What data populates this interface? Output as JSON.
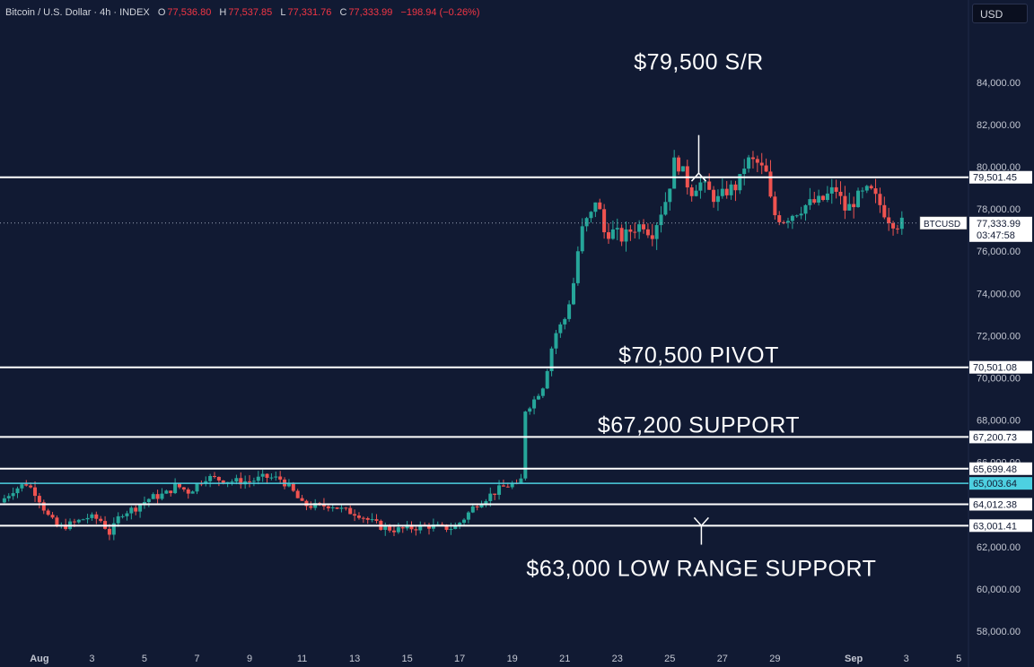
{
  "header": {
    "symbol": "Bitcoin / U.S. Dollar · 4h · INDEX",
    "open_label": "O",
    "open": "77,536.80",
    "high_label": "H",
    "high": "77,537.85",
    "low_label": "L",
    "low": "77,331.76",
    "close_label": "C",
    "close": "77,333.99",
    "change": "−198.94 (−0.26%)"
  },
  "currency_button": "USD",
  "colors": {
    "background": "#111a33",
    "up": "#26a69a",
    "down": "#ef5350",
    "level": "#ffffff",
    "range_level": "#4dd0e1",
    "axis_text": "#c3c7d2"
  },
  "chart_data": {
    "type": "candlestick",
    "timeframe": "4h",
    "ylim": [
      56900,
      86200
    ],
    "y_ticks": [
      58000,
      60000,
      62000,
      64000,
      66000,
      68000,
      70000,
      72000,
      74000,
      76000,
      78000,
      80000,
      82000,
      84000
    ],
    "x_ticks": [
      {
        "label": "Aug",
        "day": 1
      },
      {
        "label": "3",
        "day": 3
      },
      {
        "label": "5",
        "day": 5
      },
      {
        "label": "7",
        "day": 7
      },
      {
        "label": "9",
        "day": 9
      },
      {
        "label": "11",
        "day": 11
      },
      {
        "label": "13",
        "day": 13
      },
      {
        "label": "15",
        "day": 15
      },
      {
        "label": "17",
        "day": 17
      },
      {
        "label": "19",
        "day": 19
      },
      {
        "label": "21",
        "day": 21
      },
      {
        "label": "23",
        "day": 23
      },
      {
        "label": "25",
        "day": 25
      },
      {
        "label": "27",
        "day": 27
      },
      {
        "label": "29",
        "day": 29
      },
      {
        "label": "Sep",
        "day": 32
      },
      {
        "label": "3",
        "day": 34
      },
      {
        "label": "5",
        "day": 36
      }
    ],
    "x_range_days": [
      -0.5,
      36.3
    ],
    "levels": [
      {
        "label": "79,501.45",
        "value": 79501.45,
        "kind": "horizontal"
      },
      {
        "label": "70,501.08",
        "value": 70501.08,
        "kind": "horizontal"
      },
      {
        "label": "67,200.73",
        "value": 67200.73,
        "kind": "horizontal"
      },
      {
        "label": "65,699.48",
        "value": 65699.48,
        "kind": "horizontal"
      },
      {
        "label": "65,003.64",
        "value": 65003.64,
        "kind": "range"
      },
      {
        "label": "64,012.38",
        "value": 64012.38,
        "kind": "horizontal"
      },
      {
        "label": "63,001.41",
        "value": 63001.41,
        "kind": "horizontal"
      }
    ],
    "last_price": {
      "symbol": "BTCUSD",
      "price": "77,333.99",
      "countdown": "03:47:58",
      "value": 77333.99
    },
    "annotations": [
      {
        "text": "$79,500 S/R",
        "arrow": "down",
        "day": 26.1,
        "y": 85000,
        "arrow_from": 81500,
        "arrow_to": 79700
      },
      {
        "text": "$70,500 PIVOT",
        "day": 26.1,
        "y": 71100
      },
      {
        "text": "$67,200 SUPPORT",
        "day": 26.1,
        "y": 67800
      },
      {
        "text": "$63,000 LOW RANGE SUPPORT",
        "arrow": "up",
        "day": 26.2,
        "y": 61000,
        "arrow_from": 62100,
        "arrow_to": 63000
      }
    ],
    "path_points": [
      [
        -0.5,
        64100
      ],
      [
        0.0,
        64700
      ],
      [
        0.5,
        65000
      ],
      [
        0.9,
        64500
      ],
      [
        1.3,
        63500
      ],
      [
        1.7,
        62900
      ],
      [
        2.3,
        63100
      ],
      [
        2.8,
        63400
      ],
      [
        3.3,
        63300
      ],
      [
        3.7,
        62600
      ],
      [
        4.1,
        63600
      ],
      [
        4.6,
        63800
      ],
      [
        5.2,
        64300
      ],
      [
        5.8,
        64500
      ],
      [
        6.2,
        64900
      ],
      [
        6.7,
        64600
      ],
      [
        7.3,
        65300
      ],
      [
        7.8,
        65200
      ],
      [
        8.4,
        65100
      ],
      [
        9.0,
        65100
      ],
      [
        9.6,
        65300
      ],
      [
        10.2,
        65200
      ],
      [
        10.6,
        64700
      ],
      [
        11.0,
        64000
      ],
      [
        11.6,
        63900
      ],
      [
        12.1,
        64000
      ],
      [
        12.6,
        63700
      ],
      [
        13.1,
        63600
      ],
      [
        13.6,
        63200
      ],
      [
        14.1,
        62900
      ],
      [
        14.6,
        62800
      ],
      [
        15.2,
        62900
      ],
      [
        15.8,
        63000
      ],
      [
        16.3,
        62900
      ],
      [
        16.8,
        62900
      ],
      [
        17.2,
        63400
      ],
      [
        17.6,
        64000
      ],
      [
        18.1,
        64400
      ],
      [
        18.6,
        64800
      ],
      [
        19.1,
        65000
      ],
      [
        19.3,
        64500
      ],
      [
        19.5,
        68500
      ],
      [
        19.8,
        68900
      ],
      [
        20.2,
        69700
      ],
      [
        20.6,
        72000
      ],
      [
        21.0,
        72800
      ],
      [
        21.3,
        74200
      ],
      [
        21.5,
        76000
      ],
      [
        21.7,
        77200
      ],
      [
        22.0,
        77700
      ],
      [
        22.2,
        78600
      ],
      [
        22.5,
        76900
      ],
      [
        22.9,
        76900
      ],
      [
        23.2,
        76600
      ],
      [
        23.6,
        77100
      ],
      [
        24.0,
        77300
      ],
      [
        24.3,
        76800
      ],
      [
        24.6,
        77700
      ],
      [
        24.9,
        78600
      ],
      [
        25.2,
        80400
      ],
      [
        25.5,
        79700
      ],
      [
        25.8,
        78800
      ],
      [
        26.1,
        79300
      ],
      [
        26.5,
        78800
      ],
      [
        26.8,
        78400
      ],
      [
        27.2,
        78900
      ],
      [
        27.6,
        79100
      ],
      [
        27.9,
        80300
      ],
      [
        28.3,
        80200
      ],
      [
        28.7,
        79600
      ],
      [
        28.9,
        77800
      ],
      [
        29.3,
        77500
      ],
      [
        29.7,
        77800
      ],
      [
        30.2,
        78200
      ],
      [
        30.8,
        78400
      ],
      [
        31.3,
        79000
      ],
      [
        31.7,
        77900
      ],
      [
        32.1,
        78500
      ],
      [
        32.6,
        78900
      ],
      [
        33.0,
        78200
      ],
      [
        33.3,
        77600
      ],
      [
        33.6,
        77300
      ],
      [
        33.9,
        77333
      ]
    ]
  }
}
